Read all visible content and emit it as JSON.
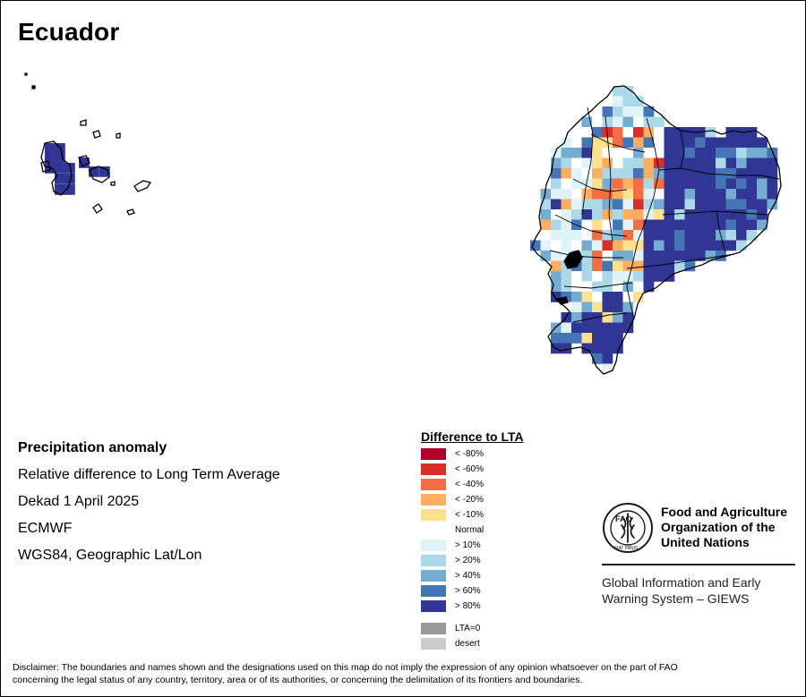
{
  "title": "Ecuador",
  "info": {
    "heading": "Precipitation anomaly",
    "line1": "Relative difference to Long Term Average",
    "line2": "Dekad 1 April 2025",
    "line3": "ECMWF",
    "line4": "WGS84, Geographic Lat/Lon"
  },
  "legend": {
    "title": "Difference to LTA",
    "classes": [
      {
        "label": "< -80%",
        "color": "#b0002a"
      },
      {
        "label": "< -60%",
        "color": "#d73027"
      },
      {
        "label": "< -40%",
        "color": "#f46d43"
      },
      {
        "label": "< -20%",
        "color": "#fdae61"
      },
      {
        "label": "< -10%",
        "color": "#fee090"
      },
      {
        "label": "Normal",
        "color": "#ffffff"
      },
      {
        "label": "> 10%",
        "color": "#e0f3f8"
      },
      {
        "label": "> 20%",
        "color": "#abd9e9"
      },
      {
        "label": "> 40%",
        "color": "#74add1"
      },
      {
        "label": "> 60%",
        "color": "#4575b4"
      },
      {
        "label": "> 80%",
        "color": "#313695"
      }
    ],
    "extra": [
      {
        "label": "LTA=0",
        "color": "#999999"
      },
      {
        "label": "desert",
        "color": "#cccccc"
      }
    ]
  },
  "logo": {
    "emblem_letters": "FAO",
    "motto": "FIAT PANIS",
    "name_line1": "Food and Agriculture",
    "name_line2": "Organization of the",
    "name_line3": "United Nations",
    "system_line1": "Global Information and Early",
    "system_line2": "Warning System – GIEWS"
  },
  "disclaimer": {
    "line1": "Disclaimer: The boundaries and names shown and the designations used on this map do not imply the expression of any opinion whatsoever on the part of FAO",
    "line2": "concerning the legal status of any country, territory, area or of its authorities, or concerning the delimitation of its frontiers and boundaries."
  }
}
